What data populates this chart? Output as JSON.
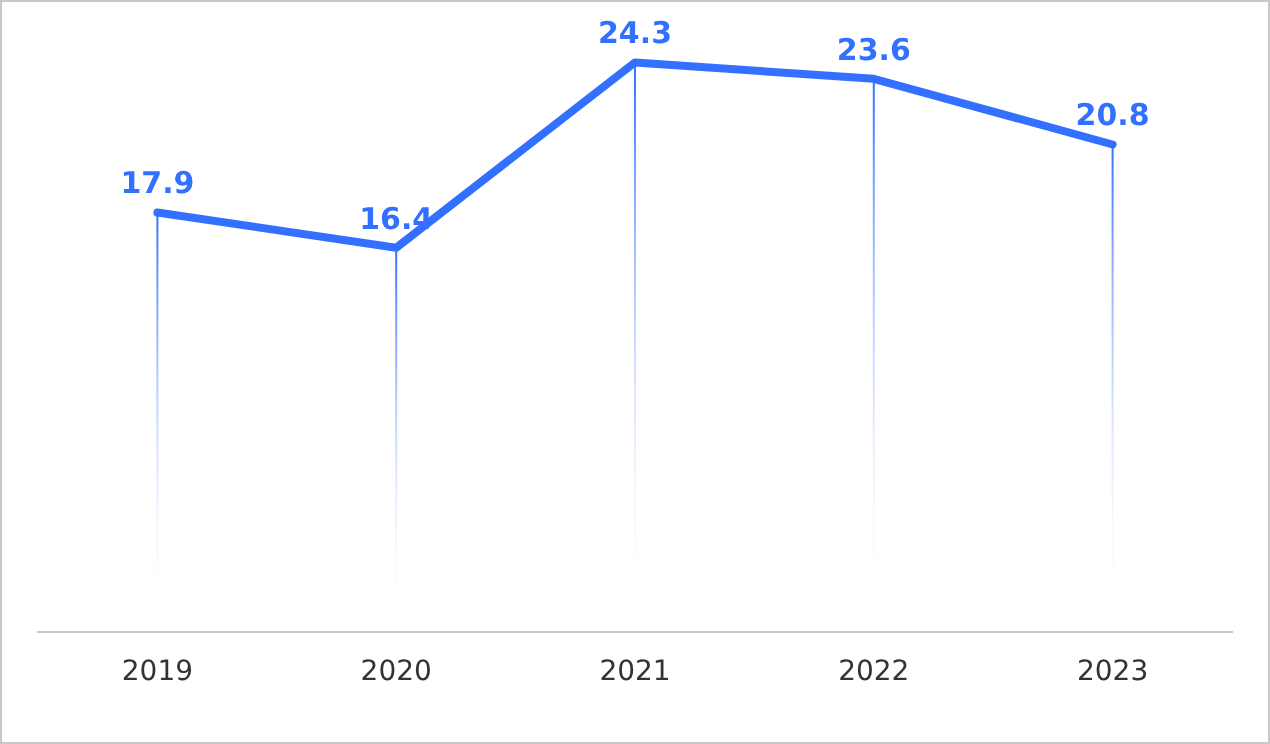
{
  "chart_data": {
    "type": "line",
    "categories": [
      "2019",
      "2020",
      "2021",
      "2022",
      "2023"
    ],
    "series": [
      {
        "color": "#3370ff",
        "values": [
          17.9,
          16.4,
          24.3,
          23.6,
          20.8
        ]
      }
    ],
    "tick_labels": "x",
    "grid": "x",
    "data_labels": true,
    "legend": false,
    "marker": "none",
    "line_style": "solid"
  }
}
